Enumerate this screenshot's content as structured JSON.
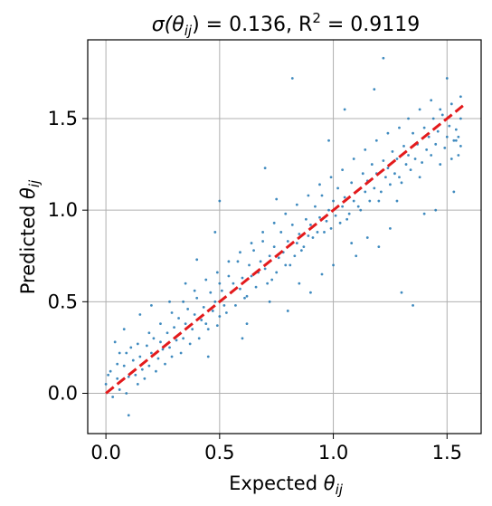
{
  "chart_data": {
    "type": "scatter",
    "title": "σ(θij) = 0.136, R² = 0.9119",
    "title_parts": {
      "sigma": "σ(θ",
      "sigma_sub": "ij",
      "sigma_eq": ") = 0.136, R",
      "r_sup": "2",
      "r_eq": " = 0.9119"
    },
    "xlabel": "Expected θij",
    "xlabel_parts": {
      "main": "Expected ",
      "theta": "θ",
      "sub": "ij"
    },
    "ylabel": "Predicted θij",
    "ylabel_parts": {
      "main": "Predicted ",
      "theta": "θ",
      "sub": "ij"
    },
    "xlim": [
      -0.08,
      1.65
    ],
    "ylim": [
      -0.22,
      1.93
    ],
    "x_ticks": [
      0.0,
      0.5,
      1.0,
      1.5
    ],
    "x_tick_labels": [
      "0.0",
      "0.5",
      "1.0",
      "1.5"
    ],
    "y_ticks": [
      0.0,
      0.5,
      1.0,
      1.5
    ],
    "y_tick_labels": [
      "0.0",
      "0.5",
      "1.0",
      "1.5"
    ],
    "grid": true,
    "series": [
      {
        "kind": "scatter",
        "color": "#1f77b4",
        "points": [
          [
            0.0,
            0.05
          ],
          [
            0.02,
            0.12
          ],
          [
            0.03,
            -0.02
          ],
          [
            0.05,
            0.08
          ],
          [
            0.06,
            0.02
          ],
          [
            0.08,
            0.15
          ],
          [
            0.08,
            0.35
          ],
          [
            0.1,
            0.09
          ],
          [
            0.1,
            -0.12
          ],
          [
            0.12,
            0.18
          ],
          [
            0.13,
            0.1
          ],
          [
            0.15,
            0.2
          ],
          [
            0.16,
            0.13
          ],
          [
            0.18,
            0.26
          ],
          [
            0.19,
            0.15
          ],
          [
            0.2,
            0.22
          ],
          [
            0.21,
            0.3
          ],
          [
            0.23,
            0.19
          ],
          [
            0.24,
            0.28
          ],
          [
            0.25,
            0.24
          ],
          [
            0.27,
            0.33
          ],
          [
            0.28,
            0.25
          ],
          [
            0.3,
            0.36
          ],
          [
            0.31,
            0.29
          ],
          [
            0.32,
            0.41
          ],
          [
            0.34,
            0.3
          ],
          [
            0.35,
            0.38
          ],
          [
            0.36,
            0.46
          ],
          [
            0.38,
            0.35
          ],
          [
            0.39,
            0.43
          ],
          [
            0.4,
            0.52
          ],
          [
            0.42,
            0.4
          ],
          [
            0.43,
            0.47
          ],
          [
            0.44,
            0.38
          ],
          [
            0.46,
            0.55
          ],
          [
            0.47,
            0.45
          ],
          [
            0.48,
            0.5
          ],
          [
            0.5,
            0.6
          ],
          [
            0.5,
            0.42
          ],
          [
            0.51,
            0.56
          ],
          [
            0.52,
            0.48
          ],
          [
            0.54,
            0.64
          ],
          [
            0.55,
            0.55
          ],
          [
            0.56,
            0.6
          ],
          [
            0.58,
            0.72
          ],
          [
            0.59,
            0.57
          ],
          [
            0.6,
            0.63
          ],
          [
            0.61,
            0.52
          ],
          [
            0.63,
            0.7
          ],
          [
            0.64,
            0.64
          ],
          [
            0.65,
            0.78
          ],
          [
            0.67,
            0.66
          ],
          [
            0.68,
            0.72
          ],
          [
            0.69,
            0.83
          ],
          [
            0.7,
            0.68
          ],
          [
            0.72,
            0.75
          ],
          [
            0.73,
            0.62
          ],
          [
            0.74,
            0.8
          ],
          [
            0.76,
            0.74
          ],
          [
            0.77,
            0.88
          ],
          [
            0.78,
            0.77
          ],
          [
            0.8,
            0.83
          ],
          [
            0.81,
            0.7
          ],
          [
            0.82,
            0.92
          ],
          [
            0.84,
            0.82
          ],
          [
            0.85,
            0.87
          ],
          [
            0.86,
            0.78
          ],
          [
            0.88,
            0.95
          ],
          [
            0.89,
            0.86
          ],
          [
            0.9,
            0.92
          ],
          [
            0.92,
            1.02
          ],
          [
            0.93,
            0.88
          ],
          [
            0.94,
            0.96
          ],
          [
            0.95,
            1.08
          ],
          [
            0.97,
            0.94
          ],
          [
            0.98,
            1.0
          ],
          [
            0.99,
            0.9
          ],
          [
            1.0,
            1.05
          ],
          [
            1.01,
            0.97
          ],
          [
            1.02,
            1.12
          ],
          [
            1.04,
            1.02
          ],
          [
            1.05,
            1.07
          ],
          [
            1.06,
            0.95
          ],
          [
            1.08,
            1.15
          ],
          [
            1.09,
            1.05
          ],
          [
            1.1,
            1.1
          ],
          [
            1.12,
            1.0
          ],
          [
            1.13,
            1.2
          ],
          [
            1.14,
            1.1
          ],
          [
            1.15,
            1.16
          ],
          [
            1.17,
            1.25
          ],
          [
            1.18,
            1.12
          ],
          [
            1.19,
            1.2
          ],
          [
            1.2,
            1.05
          ],
          [
            1.22,
            1.27
          ],
          [
            1.23,
            1.18
          ],
          [
            1.24,
            1.23
          ],
          [
            1.26,
            1.32
          ],
          [
            1.27,
            1.2
          ],
          [
            1.28,
            1.28
          ],
          [
            1.3,
            1.15
          ],
          [
            1.31,
            1.35
          ],
          [
            1.32,
            1.25
          ],
          [
            1.33,
            1.3
          ],
          [
            1.35,
            1.42
          ],
          [
            1.36,
            1.28
          ],
          [
            1.37,
            1.36
          ],
          [
            1.38,
            1.18
          ],
          [
            1.4,
            1.45
          ],
          [
            1.41,
            1.33
          ],
          [
            1.42,
            1.4
          ],
          [
            1.44,
            1.5
          ],
          [
            1.45,
            1.36
          ],
          [
            1.46,
            1.43
          ],
          [
            1.47,
            1.25
          ],
          [
            1.48,
            1.52
          ],
          [
            1.5,
            1.4
          ],
          [
            1.51,
            1.46
          ],
          [
            1.52,
            1.58
          ],
          [
            1.53,
            1.38
          ],
          [
            1.54,
            1.44
          ],
          [
            1.55,
            1.3
          ],
          [
            1.56,
            1.5
          ],
          [
            1.56,
            1.62
          ],
          [
            1.55,
            1.4
          ],
          [
            1.53,
            1.1
          ],
          [
            1.5,
            1.72
          ],
          [
            1.45,
            1.0
          ],
          [
            1.4,
            0.98
          ],
          [
            1.35,
            0.48
          ],
          [
            1.3,
            0.55
          ],
          [
            1.22,
            1.83
          ],
          [
            1.18,
            1.66
          ],
          [
            1.05,
            1.55
          ],
          [
            0.98,
            1.38
          ],
          [
            0.82,
            1.72
          ],
          [
            0.75,
            1.06
          ],
          [
            0.7,
            1.23
          ],
          [
            0.5,
            1.05
          ],
          [
            0.48,
            0.88
          ],
          [
            0.4,
            0.73
          ],
          [
            0.35,
            0.6
          ],
          [
            0.28,
            0.5
          ],
          [
            0.2,
            0.48
          ],
          [
            0.15,
            0.43
          ],
          [
            0.45,
            0.2
          ],
          [
            0.6,
            0.3
          ],
          [
            0.8,
            0.45
          ],
          [
            0.9,
            0.55
          ],
          [
            1.0,
            0.7
          ],
          [
            1.1,
            0.75
          ],
          [
            1.2,
            0.8
          ],
          [
            1.25,
            0.9
          ],
          [
            1.28,
            1.05
          ],
          [
            1.15,
            0.85
          ],
          [
            1.08,
            0.82
          ],
          [
            0.95,
            0.65
          ],
          [
            0.85,
            0.6
          ],
          [
            0.72,
            0.5
          ],
          [
            0.62,
            0.38
          ],
          [
            0.04,
            0.28
          ],
          [
            0.06,
            0.22
          ],
          [
            0.09,
            0.0
          ],
          [
            0.11,
            0.25
          ],
          [
            0.14,
            0.05
          ],
          [
            0.17,
            0.08
          ],
          [
            0.22,
            0.12
          ],
          [
            0.26,
            0.16
          ],
          [
            0.29,
            0.2
          ],
          [
            0.33,
            0.22
          ],
          [
            0.37,
            0.27
          ],
          [
            0.41,
            0.3
          ],
          [
            0.45,
            0.35
          ],
          [
            0.49,
            0.37
          ],
          [
            0.53,
            0.44
          ],
          [
            0.57,
            0.48
          ],
          [
            0.62,
            0.53
          ],
          [
            0.66,
            0.58
          ],
          [
            0.71,
            0.6
          ],
          [
            0.75,
            0.66
          ],
          [
            0.79,
            0.7
          ],
          [
            0.83,
            0.75
          ],
          [
            0.87,
            0.8
          ],
          [
            0.91,
            0.85
          ],
          [
            0.96,
            0.88
          ],
          [
            1.03,
            0.93
          ],
          [
            1.07,
            0.98
          ],
          [
            1.11,
            1.02
          ],
          [
            1.16,
            1.05
          ],
          [
            1.21,
            1.1
          ],
          [
            1.25,
            1.14
          ],
          [
            1.29,
            1.18
          ],
          [
            1.34,
            1.22
          ],
          [
            1.39,
            1.26
          ],
          [
            1.43,
            1.3
          ],
          [
            1.49,
            1.34
          ],
          [
            1.54,
            1.38
          ],
          [
            1.56,
            1.35
          ],
          [
            1.52,
            1.28
          ],
          [
            1.47,
            1.55
          ],
          [
            1.43,
            1.6
          ],
          [
            1.38,
            1.55
          ],
          [
            1.33,
            1.5
          ],
          [
            1.29,
            1.45
          ],
          [
            1.24,
            1.42
          ],
          [
            1.19,
            1.38
          ],
          [
            1.14,
            1.33
          ],
          [
            1.09,
            1.28
          ],
          [
            1.04,
            1.22
          ],
          [
            0.99,
            1.18
          ],
          [
            0.94,
            1.14
          ],
          [
            0.89,
            1.08
          ],
          [
            0.84,
            1.03
          ],
          [
            0.79,
            0.98
          ],
          [
            0.74,
            0.93
          ],
          [
            0.69,
            0.88
          ],
          [
            0.64,
            0.82
          ],
          [
            0.59,
            0.77
          ],
          [
            0.54,
            0.72
          ],
          [
            0.49,
            0.66
          ],
          [
            0.44,
            0.62
          ],
          [
            0.39,
            0.56
          ],
          [
            0.34,
            0.5
          ],
          [
            0.29,
            0.44
          ],
          [
            0.24,
            0.38
          ],
          [
            0.19,
            0.33
          ],
          [
            0.14,
            0.27
          ],
          [
            0.09,
            0.22
          ],
          [
            0.05,
            0.16
          ],
          [
            0.01,
            0.1
          ]
        ]
      },
      {
        "kind": "line",
        "color": "#e31a1c",
        "dash": "dashed",
        "points": [
          [
            0.0,
            0.0
          ],
          [
            1.57,
            1.57
          ]
        ]
      }
    ]
  }
}
